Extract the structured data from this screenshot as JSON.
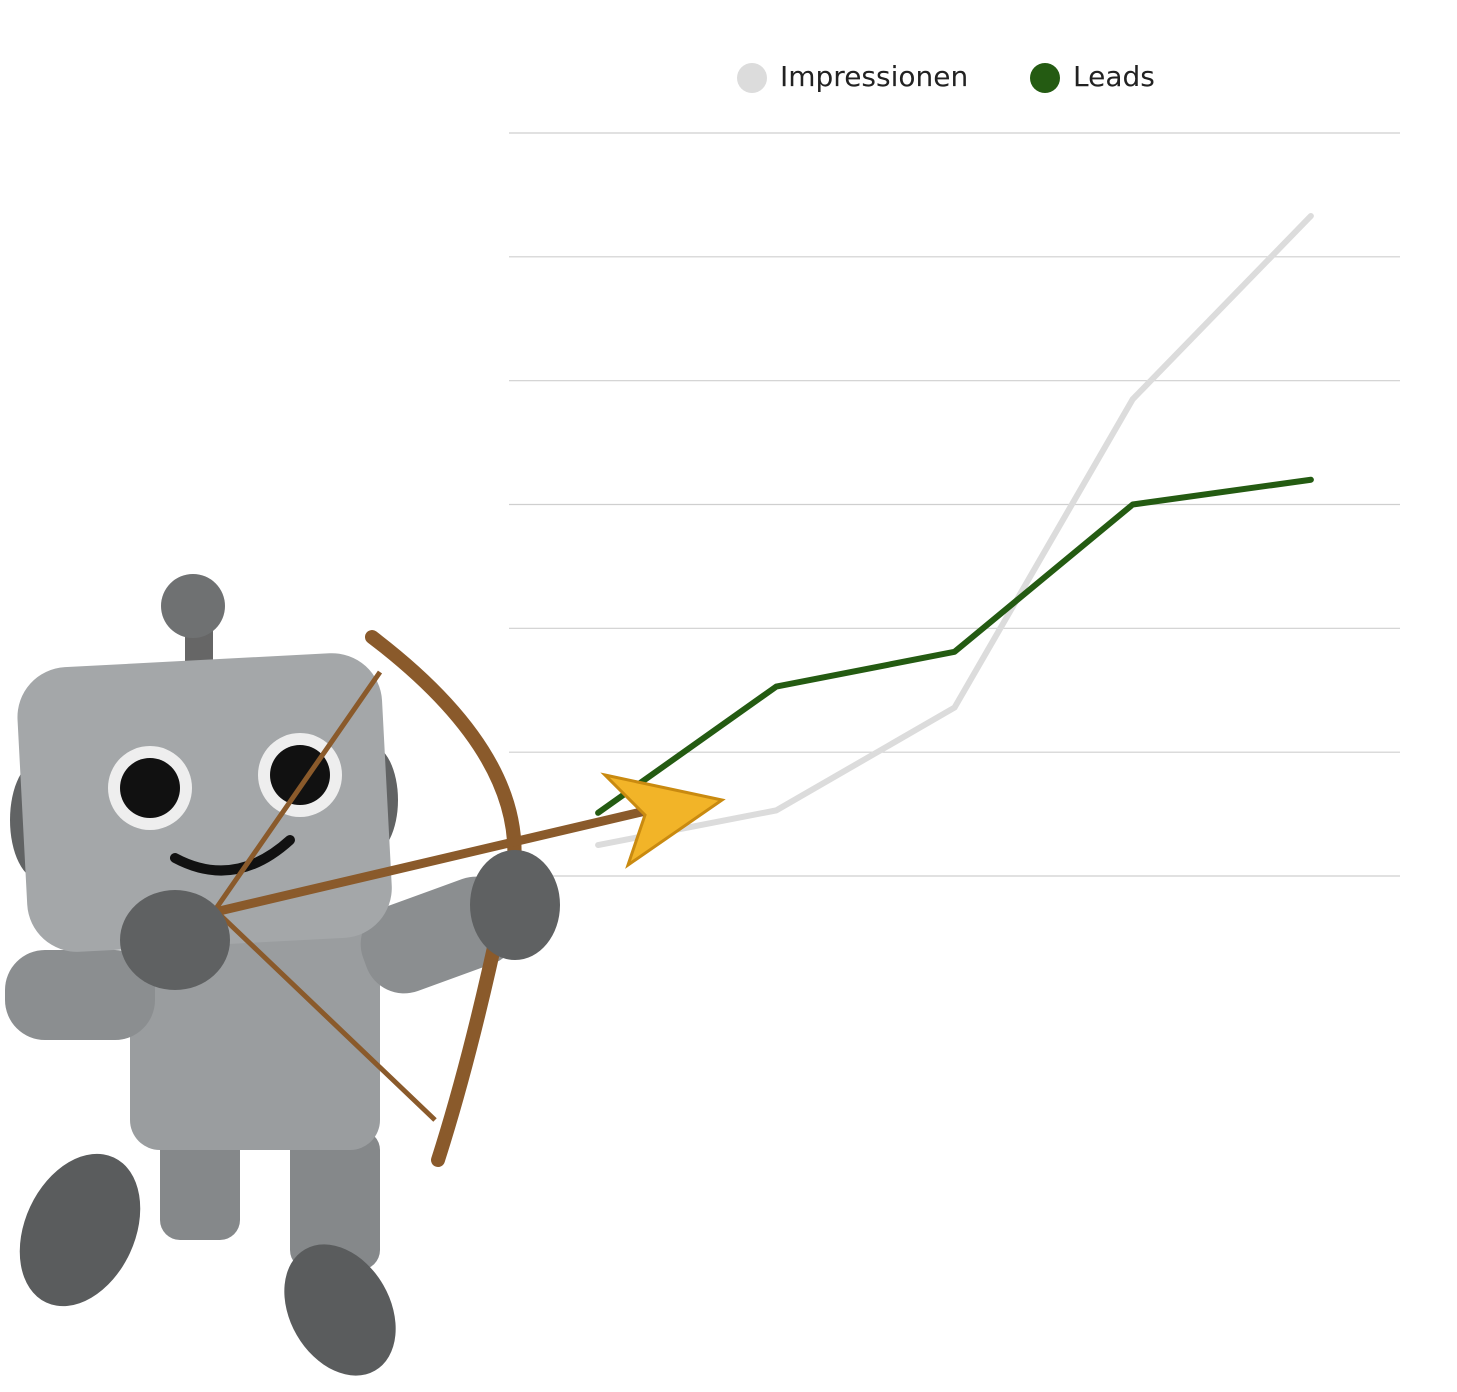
{
  "chart_data": {
    "type": "line",
    "categories": [
      null,
      null,
      null,
      null,
      null
    ],
    "series": [
      {
        "name": "Impressionen",
        "color": "#dcdcdc",
        "values": [
          0.25,
          0.53,
          1.36,
          3.85,
          5.33
        ]
      },
      {
        "name": "Leads",
        "color": "#245b12",
        "values": [
          0.51,
          1.53,
          1.81,
          3.0,
          3.2
        ]
      }
    ],
    "ylim": [
      0,
      6
    ],
    "yticks": [
      0,
      1,
      2,
      3,
      4,
      5,
      6
    ],
    "grid": true,
    "legend": "top"
  }
}
